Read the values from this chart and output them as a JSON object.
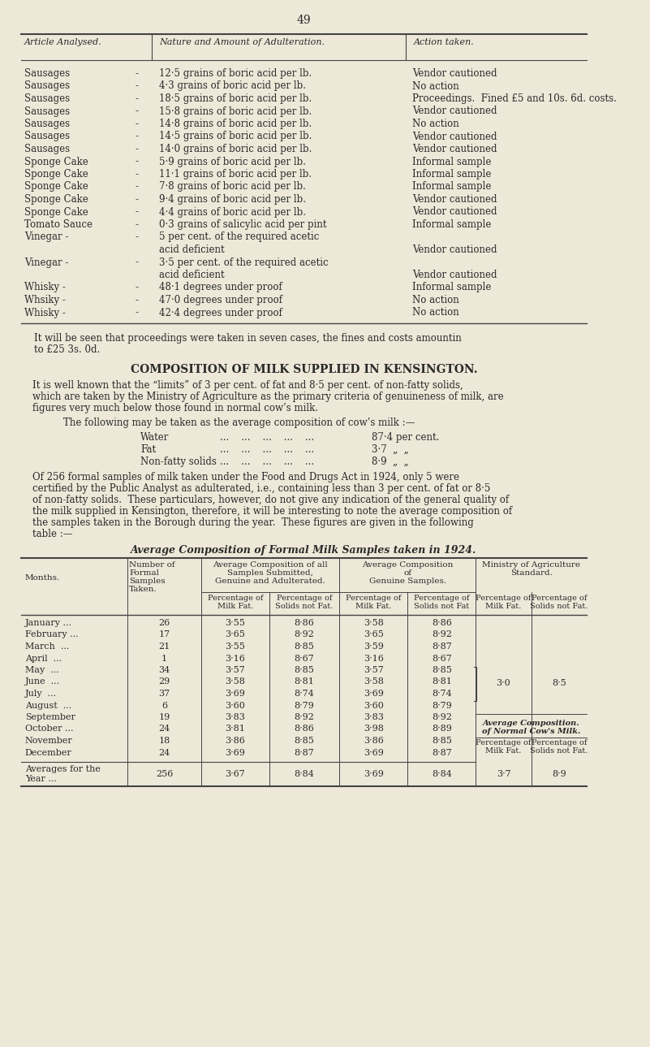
{
  "bg_color": "#ede8d8",
  "text_color": "#2a2a2a",
  "page_number": "49",
  "top_table_rows": [
    [
      "Sausages",
      "12·5 grains of boric acid per lb.",
      "Vendor cautioned"
    ],
    [
      "Sausages",
      "4·3 grains of boric acid per lb.",
      "No action"
    ],
    [
      "Sausages",
      "18·5 grains of boric acid per lb.",
      "Proceedings.  Fined £5 and 10s. 6d. costs."
    ],
    [
      "Sausages",
      "15·8 grains of boric acid per lb.",
      "Vendor cautioned"
    ],
    [
      "Sausages",
      "14·8 grains of boric acid per lb.",
      "No action"
    ],
    [
      "Sausages",
      "14·5 grains of boric acid per lb.",
      "Vendor cautioned"
    ],
    [
      "Sausages",
      "14·0 grains of boric acid per lb.",
      "Vendor cautioned"
    ],
    [
      "Sponge Cake",
      "5·9 grains of boric acid per lb.",
      "Informal sample"
    ],
    [
      "Sponge Cake",
      "11·1 grains of boric acid per lb.",
      "Informal sample"
    ],
    [
      "Sponge Cake",
      "7·8 grains of boric acid per lb.",
      "Informal sample"
    ],
    [
      "Sponge Cake",
      "9·4 grains of boric acid per lb.",
      "Vendor cautioned"
    ],
    [
      "Sponge Cake",
      "4·4 grains of boric acid per lb.",
      "Vendor cautioned"
    ],
    [
      "Tomato Sauce",
      "0·3 grains of salicylic acid per pint",
      "Informal sample"
    ],
    [
      "Vinegar -",
      "5 per cent. of the required acetic\nacid deficient",
      "Vendor cautioned"
    ],
    [
      "Vinegar -",
      "3·5 per cent. of the required acetic\nacid deficient",
      "Vendor cautioned"
    ],
    [
      "Whisky -",
      "48·1 degrees under proof",
      "Informal sample"
    ],
    [
      "Whsiky -",
      "47·0 degrees under proof",
      "No action"
    ],
    [
      "Whisky -",
      "42·4 degrees under proof",
      "No action"
    ]
  ],
  "para1_lines": [
    "It will be seen that proceedings were taken in seven cases, the fines and costs amountin",
    "to £25 3s. 0d."
  ],
  "section_title": "COMPOSITION OF MILK SUPPLIED IN KENSINGTON.",
  "para2_lines": [
    "It is well known that the “limits” of 3 per cent. of fat and 8·5 per cent. of non-fatty solids,",
    "which are taken by the Ministry of Agriculture as the primary criteria of genuineness of milk, are",
    "figures very much below those found in normal cow’s milk."
  ],
  "para3_intro": "The following may be taken as the average composition of cow’s milk :—",
  "cow_rows": [
    [
      "Water",
      "87·4 per cent."
    ],
    [
      "Fat",
      "3·7  „  „"
    ],
    [
      "Non-fatty solids",
      "8·9  „  „"
    ]
  ],
  "para4_lines": [
    "Of 256 formal samples of milk taken under the Food and Drugs Act in 1924, only 5 were",
    "certified by the Public Analyst as adulterated, i.e., containing less than 3 per cent. of fat or 8·5",
    "of non-fatty solids.  These particulars, however, do not give any indication of the general quality of",
    "the milk supplied in Kensington, therefore, it will be interesting to note the average composition of",
    "the samples taken in the Borough during the year.  These figures are given in the following",
    "table :—"
  ],
  "table2_title": "Average Composition of Formal Milk Samples taken in 1924.",
  "milk_rows": [
    [
      "January ...",
      "...",
      "26",
      "3·55",
      "8·86",
      "3·58",
      "8·86"
    ],
    [
      "February ...",
      "...",
      "17",
      "3·65",
      "8·92",
      "3·65",
      "8·92"
    ],
    [
      "March  ...",
      "...",
      "21",
      "3·55",
      "8·85",
      "3·59",
      "8·87"
    ],
    [
      "April  ...",
      "..",
      "1",
      "3·16",
      "8·67",
      "3·16",
      "8·67"
    ],
    [
      "May  ...",
      "...",
      "34",
      "3·57",
      "8·85",
      "3·57",
      "8·85"
    ],
    [
      "June  ...",
      "...",
      "29",
      "3·58",
      "8·81",
      "3·58",
      "8·81"
    ],
    [
      "July  ...",
      "...",
      "37",
      "3·69",
      "8·74",
      "3·69",
      "8·74"
    ],
    [
      "August  ...",
      "...",
      "6",
      "3·60",
      "8·79",
      "3·60",
      "8·79"
    ],
    [
      "September",
      "...",
      "19",
      "3·83",
      "8·92",
      "3·83",
      "8·92"
    ],
    [
      "October ...",
      "...",
      "24",
      "3·81",
      "8·86",
      "3·98",
      "8·89"
    ],
    [
      "November",
      "...",
      "18",
      "3·86",
      "8·85",
      "3·86",
      "8·85"
    ],
    [
      "December",
      "...",
      "24",
      "3·69",
      "8·87",
      "3·69",
      "8·87"
    ]
  ],
  "ministry_std_fat": "3·0",
  "ministry_std_sol": "8·5",
  "avg_cow_fat": "3·7",
  "avg_cow_sol": "8·9",
  "avg_row": [
    "Averages for the",
    "Year ...",
    "256",
    "3·67",
    "8·84",
    "3·69",
    "8·84"
  ]
}
